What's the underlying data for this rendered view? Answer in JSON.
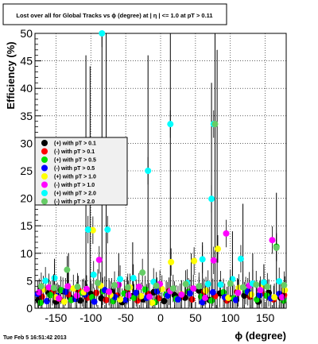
{
  "chart_data": {
    "type": "scatter",
    "title": "Lost over all for Global Tracks vs ϕ (degree) at | η | <= 1.0 at pT > 0.11",
    "xlabel": "ϕ (degree)",
    "ylabel": "Efficiency (%)",
    "xlim": [
      -180,
      180
    ],
    "ylim": [
      0,
      50
    ],
    "x_ticks": [
      -150,
      -100,
      -50,
      0,
      50,
      100,
      150
    ],
    "y_ticks": [
      0,
      5,
      10,
      15,
      20,
      25,
      30,
      35,
      40,
      45,
      50
    ],
    "grid": true,
    "legend_position": "left-center",
    "timestamp": "Tue Feb  5 16:51:42 2013",
    "series": [
      {
        "name": "(+) with pT > 0.1",
        "color": "#000000",
        "points": [
          [
            -175,
            1.5
          ],
          [
            -160,
            2.8
          ],
          [
            -150,
            1.2
          ],
          [
            -140,
            3.1
          ],
          [
            -130,
            2.0
          ],
          [
            -115,
            1.4
          ],
          [
            -100,
            2.6
          ],
          [
            -85,
            1.8
          ],
          [
            -70,
            3.0
          ],
          [
            -55,
            1.1
          ],
          [
            -40,
            2.2
          ],
          [
            -25,
            1.6
          ],
          [
            -10,
            2.9
          ],
          [
            5,
            1.3
          ],
          [
            20,
            2.4
          ],
          [
            35,
            1.9
          ],
          [
            55,
            3.2
          ],
          [
            70,
            1.5
          ],
          [
            85,
            2.7
          ],
          [
            100,
            1.8
          ],
          [
            120,
            2.3
          ],
          [
            140,
            1.2
          ],
          [
            155,
            2.8
          ],
          [
            172,
            1.9
          ]
        ]
      },
      {
        "name": "(-) with pT > 0.1",
        "color": "#ff0000",
        "points": [
          [
            -170,
            2.1
          ],
          [
            -155,
            3.0
          ],
          [
            -145,
            1.7
          ],
          [
            -132,
            2.5
          ],
          [
            -118,
            3.4
          ],
          [
            -105,
            1.9
          ],
          [
            -92,
            2.8
          ],
          [
            -78,
            1.5
          ],
          [
            -62,
            2.3
          ],
          [
            -48,
            3.2
          ],
          [
            -33,
            1.4
          ],
          [
            -18,
            2.6
          ],
          [
            -3,
            1.8
          ],
          [
            12,
            3.1
          ],
          [
            28,
            2.0
          ],
          [
            45,
            1.6
          ],
          [
            62,
            2.9
          ],
          [
            78,
            2.2
          ],
          [
            95,
            1.4
          ],
          [
            110,
            3.0
          ],
          [
            128,
            2.1
          ],
          [
            145,
            2.7
          ],
          [
            162,
            1.6
          ],
          [
            177,
            2.4
          ]
        ]
      },
      {
        "name": "(+) with pT > 0.5",
        "color": "#00dd00",
        "points": [
          [
            -172,
            1.0
          ],
          [
            -158,
            2.4
          ],
          [
            -143,
            3.3
          ],
          [
            -128,
            1.5
          ],
          [
            -112,
            2.8
          ],
          [
            -98,
            2.0
          ],
          [
            -83,
            3.1
          ],
          [
            -68,
            1.3
          ],
          [
            -52,
            2.7
          ],
          [
            -38,
            1.9
          ],
          [
            -22,
            3.4
          ],
          [
            -8,
            1.1
          ],
          [
            8,
            2.5
          ],
          [
            22,
            1.7
          ],
          [
            40,
            3.0
          ],
          [
            58,
            2.1
          ],
          [
            73,
            1.4
          ],
          [
            90,
            2.9
          ],
          [
            105,
            1.8
          ],
          [
            122,
            3.2
          ],
          [
            138,
            1.6
          ],
          [
            152,
            2.3
          ],
          [
            166,
            11.2
          ],
          [
            176,
            1.4
          ]
        ]
      },
      {
        "name": "(-) with pT > 0.5",
        "color": "#0000ff",
        "points": [
          [
            -176,
            2.6
          ],
          [
            -163,
            1.3
          ],
          [
            -148,
            2.2
          ],
          [
            -136,
            3.0
          ],
          [
            -122,
            1.7
          ],
          [
            -108,
            2.5
          ],
          [
            -95,
            1.2
          ],
          [
            -80,
            3.3
          ],
          [
            -65,
            2.0
          ],
          [
            -50,
            1.5
          ],
          [
            -35,
            2.8
          ],
          [
            -20,
            1.9
          ],
          [
            -5,
            3.1
          ],
          [
            10,
            2.3
          ],
          [
            25,
            1.6
          ],
          [
            42,
            2.7
          ],
          [
            60,
            1.1
          ],
          [
            75,
            2.9
          ],
          [
            92,
            2.0
          ],
          [
            108,
            1.5
          ],
          [
            125,
            3.0
          ],
          [
            142,
            2.4
          ],
          [
            158,
            1.8
          ],
          [
            170,
            2.6
          ]
        ]
      },
      {
        "name": "(+) with pT > 1.0",
        "color": "#ffff00",
        "points": [
          [
            -168,
            3.4
          ],
          [
            -150,
            2.0
          ],
          [
            -138,
            1.2
          ],
          [
            -125,
            3.6
          ],
          [
            -110,
            2.9
          ],
          [
            -97,
            14.2
          ],
          [
            -86,
            4.1
          ],
          [
            -72,
            2.4
          ],
          [
            -58,
            1.6
          ],
          [
            -44,
            3.8
          ],
          [
            -28,
            2.2
          ],
          [
            -12,
            1.0
          ],
          [
            2,
            3.5
          ],
          [
            15,
            8.4
          ],
          [
            30,
            2.6
          ],
          [
            48,
            8.6
          ],
          [
            65,
            3.2
          ],
          [
            82,
            10.8
          ],
          [
            97,
            1.9
          ],
          [
            112,
            3.7
          ],
          [
            130,
            2.5
          ],
          [
            148,
            4.2
          ],
          [
            163,
            2.0
          ],
          [
            178,
            3.3
          ]
        ]
      },
      {
        "name": "(-) with pT > 1.0",
        "color": "#ff00ff",
        "points": [
          [
            -174,
            2.9
          ],
          [
            -160,
            3.8
          ],
          [
            -146,
            1.8
          ],
          [
            -133,
            4.0
          ],
          [
            -120,
            2.3
          ],
          [
            -106,
            3.5
          ],
          [
            -88,
            8.8
          ],
          [
            -74,
            3.0
          ],
          [
            -60,
            4.3
          ],
          [
            -46,
            2.4
          ],
          [
            -31,
            3.9
          ],
          [
            -16,
            2.1
          ],
          [
            -1,
            4.4
          ],
          [
            14,
            3.1
          ],
          [
            30,
            2.5
          ],
          [
            47,
            3.6
          ],
          [
            64,
            1.9
          ],
          [
            76,
            8.7
          ],
          [
            94,
            13.6
          ],
          [
            111,
            2.8
          ],
          [
            127,
            4.1
          ],
          [
            143,
            3.3
          ],
          [
            160,
            12.4
          ],
          [
            174,
            2.0
          ]
        ]
      },
      {
        "name": "(+) with pT > 2.0",
        "color": "#00ffff",
        "points": [
          [
            -165,
            5.0
          ],
          [
            -152,
            5.5
          ],
          [
            -104,
            14.3
          ],
          [
            -96,
            6.1
          ],
          [
            -84,
            50.0
          ],
          [
            -76,
            14.3
          ],
          [
            -58,
            5.3
          ],
          [
            -39,
            5.5
          ],
          [
            -18,
            25.0
          ],
          [
            -10,
            4.8
          ],
          [
            14,
            33.5
          ],
          [
            38,
            4.6
          ],
          [
            60,
            8.9
          ],
          [
            68,
            4.4
          ],
          [
            73,
            19.9
          ],
          [
            76,
            33.5
          ],
          [
            86,
            4.3
          ],
          [
            103,
            5.3
          ],
          [
            115,
            9.0
          ],
          [
            132,
            4.5
          ],
          [
            148,
            4.7
          ],
          [
            170,
            4.9
          ]
        ]
      },
      {
        "name": "(-) with pT > 2.0",
        "color": "#66cc66",
        "points": [
          [
            -171,
            4.0
          ],
          [
            -153,
            3.7
          ],
          [
            -134,
            7.0
          ],
          [
            -119,
            3.9
          ],
          [
            -107,
            25.0
          ],
          [
            -90,
            4.6
          ],
          [
            -66,
            4.2
          ],
          [
            -47,
            3.8
          ],
          [
            -26,
            6.5
          ],
          [
            -6,
            4.1
          ],
          [
            18,
            3.6
          ],
          [
            36,
            4.4
          ],
          [
            55,
            4.0
          ],
          [
            78,
            33.5
          ],
          [
            100,
            4.5
          ],
          [
            118,
            3.8
          ],
          [
            137,
            4.3
          ],
          [
            153,
            3.9
          ],
          [
            166,
            11.0
          ],
          [
            177,
            4.2
          ]
        ]
      }
    ],
    "error_bars": [
      {
        "x": -107,
        "y_high": 46
      },
      {
        "x": -101,
        "y_high": 44
      },
      {
        "x": -84,
        "y_high": 50
      },
      {
        "x": -78,
        "y_high": 50
      },
      {
        "x": -18,
        "y_high": 46
      },
      {
        "x": 14,
        "y_high": 50
      },
      {
        "x": 73,
        "y_high": 41
      },
      {
        "x": 78,
        "y_high": 50
      },
      {
        "x": 81,
        "y_high": 47
      },
      {
        "x": 103,
        "y_high": 14
      },
      {
        "x": 118,
        "y_high": 19
      },
      {
        "x": 166,
        "y_high": 21
      },
      {
        "x": -152,
        "y_high": 9
      },
      {
        "x": -132,
        "y_high": 10
      },
      {
        "x": -60,
        "y_high": 10
      },
      {
        "x": 44,
        "y_high": 10
      },
      {
        "x": 60,
        "y_high": 12
      },
      {
        "x": 132,
        "y_high": 10
      },
      {
        "x": 148,
        "y_high": 8
      },
      {
        "x": -40,
        "y_high": 12
      }
    ]
  }
}
